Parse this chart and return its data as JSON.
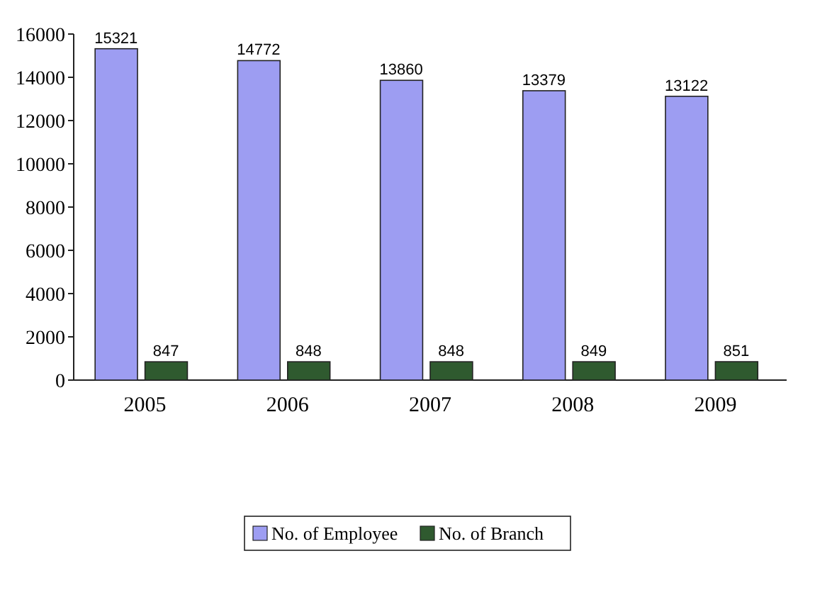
{
  "chart_data": {
    "type": "bar",
    "categories": [
      "2005",
      "2006",
      "2007",
      "2008",
      "2009"
    ],
    "series": [
      {
        "name": "No. of Employee",
        "color": "#9d9df2",
        "values": [
          15321,
          14772,
          13860,
          13379,
          13122
        ]
      },
      {
        "name": "No. of Branch",
        "color": "#2f5a2f",
        "values": [
          847,
          848,
          848,
          849,
          851
        ]
      }
    ],
    "ylim": [
      0,
      16000
    ],
    "yticks": [
      0,
      2000,
      4000,
      6000,
      8000,
      10000,
      12000,
      14000,
      16000
    ],
    "data_labels": true,
    "legend": "bottom"
  }
}
